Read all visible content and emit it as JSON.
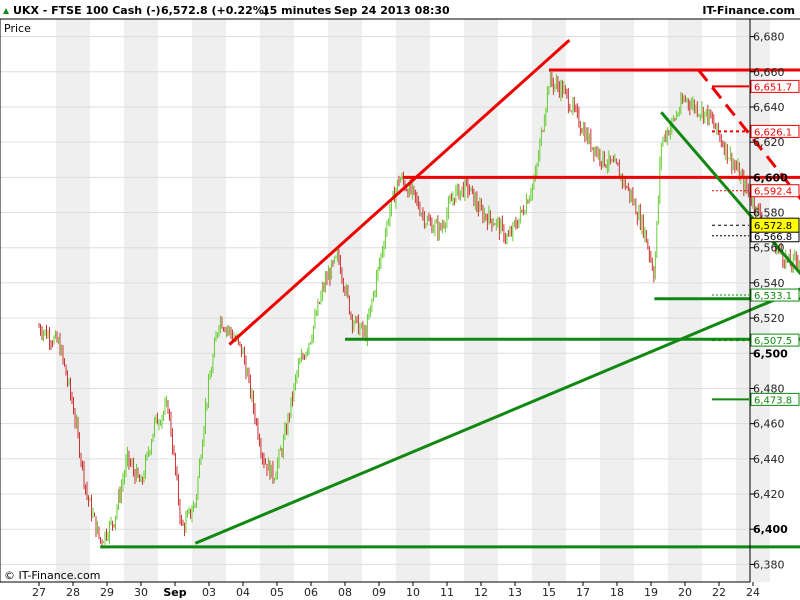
{
  "header": {
    "symbol": "UKX - FTSE 100 Cash (-)",
    "quote": "6,572.8 (+0.22%)",
    "interval": "15 minutes",
    "datetime": "Sep 24 2013 08:30",
    "brand": "IT-Finance.com"
  },
  "footer": {
    "copyright": "© IT-Finance.com"
  },
  "colors": {
    "up": "#66cc33",
    "down": "#cc3333",
    "resistance": "#ee0000",
    "support": "#118811",
    "alt_band": "#efefef",
    "bg": "#ffffff",
    "last_bg": "#ffff00"
  },
  "chart_data": {
    "type": "candlestick",
    "ylabel": "Price",
    "ylim": [
      6370,
      6690
    ],
    "y_ticks": [
      "6,380",
      "6,400",
      "6,420",
      "6,440",
      "6,460",
      "6,480",
      "6,500",
      "6,520",
      "6,540",
      "6,560",
      "6,580",
      "6,600",
      "6,620",
      "6,640",
      "6,660",
      "6,680"
    ],
    "y_tick_values": [
      6380,
      6400,
      6420,
      6440,
      6460,
      6480,
      6500,
      6520,
      6540,
      6560,
      6580,
      6600,
      6620,
      6640,
      6660,
      6680
    ],
    "y_bold_ticks": [
      6400,
      6500,
      6600
    ],
    "x_ticks": [
      "27",
      "28",
      "29",
      "30",
      "Sep",
      "03",
      "04",
      "05",
      "06",
      "08",
      "09",
      "10",
      "11",
      "12",
      "13",
      "15",
      "17",
      "18",
      "19",
      "20",
      "22",
      "24"
    ],
    "x_bold_ticks": [
      "Sep"
    ],
    "last_price": "6,572.8",
    "price_path": [
      [
        0,
        6515
      ],
      [
        0.6,
        6505
      ],
      [
        1.0,
        6470
      ],
      [
        1.4,
        6420
      ],
      [
        1.8,
        6393
      ],
      [
        2.2,
        6405
      ],
      [
        2.6,
        6440
      ],
      [
        3.0,
        6425
      ],
      [
        3.4,
        6460
      ],
      [
        3.8,
        6470
      ],
      [
        4.2,
        6400
      ],
      [
        4.6,
        6415
      ],
      [
        4.9,
        6470
      ],
      [
        5.3,
        6520
      ],
      [
        5.7,
        6510
      ],
      [
        6.0,
        6500
      ],
      [
        6.3,
        6470
      ],
      [
        6.6,
        6440
      ],
      [
        6.9,
        6430
      ],
      [
        7.2,
        6450
      ],
      [
        7.6,
        6490
      ],
      [
        8.0,
        6510
      ],
      [
        8.4,
        6540
      ],
      [
        8.8,
        6555
      ],
      [
        9.2,
        6520
      ],
      [
        9.6,
        6510
      ],
      [
        10.0,
        6550
      ],
      [
        10.3,
        6580
      ],
      [
        10.6,
        6600
      ],
      [
        11.0,
        6590
      ],
      [
        11.4,
        6575
      ],
      [
        11.8,
        6570
      ],
      [
        12.2,
        6590
      ],
      [
        12.6,
        6595
      ],
      [
        13.0,
        6580
      ],
      [
        13.4,
        6575
      ],
      [
        13.8,
        6565
      ],
      [
        14.2,
        6580
      ],
      [
        14.6,
        6600
      ],
      [
        15.0,
        6655
      ],
      [
        15.4,
        6650
      ],
      [
        15.8,
        6635
      ],
      [
        16.2,
        6620
      ],
      [
        16.6,
        6610
      ],
      [
        17.0,
        6605
      ],
      [
        17.4,
        6590
      ],
      [
        17.8,
        6570
      ],
      [
        18.1,
        6545
      ],
      [
        18.3,
        6620
      ],
      [
        18.6,
        6630
      ],
      [
        19.0,
        6645
      ],
      [
        19.3,
        6640
      ],
      [
        19.7,
        6635
      ],
      [
        20.1,
        6620
      ],
      [
        20.5,
        6605
      ],
      [
        20.9,
        6590
      ],
      [
        21.3,
        6575
      ],
      [
        21.7,
        6560
      ],
      [
        22.1,
        6550
      ],
      [
        22.4,
        6555
      ],
      [
        22.8,
        6562
      ],
      [
        23.2,
        6572.8
      ]
    ]
  },
  "level_labels": [
    {
      "text": "6,651.7",
      "value": 6651.7,
      "color": "#ee0000",
      "style": "solid"
    },
    {
      "text": "6,626.1",
      "value": 6626.1,
      "color": "#ee0000",
      "style": "dotted"
    },
    {
      "text": "6,592.4",
      "value": 6592.4,
      "color": "#ee0000",
      "style": "fine"
    },
    {
      "text": "6,566.8",
      "value": 6566.8,
      "color": "#000000",
      "style": "fine"
    },
    {
      "text": "6,533.1",
      "value": 6533.1,
      "color": "#118811",
      "style": "fine"
    },
    {
      "text": "6,507.5",
      "value": 6507.5,
      "color": "#118811",
      "style": "dotted"
    },
    {
      "text": "6,473.8",
      "value": 6473.8,
      "color": "#118811",
      "style": "solid"
    }
  ],
  "trend_lines": [
    {
      "name": "resistance-6660",
      "color": "resistance",
      "dash": false,
      "x1": 15.0,
      "y1": 6661,
      "x2": 23.8,
      "y2": 6661
    },
    {
      "name": "resistance-6600",
      "color": "resistance",
      "dash": false,
      "x1": 10.7,
      "y1": 6600,
      "x2": 23.8,
      "y2": 6600
    },
    {
      "name": "rising-resistance",
      "color": "resistance",
      "dash": false,
      "x1": 5.6,
      "y1": 6505,
      "x2": 15.6,
      "y2": 6678
    },
    {
      "name": "falling-resistance-dashed",
      "color": "resistance",
      "dash": true,
      "x1": 19.4,
      "y1": 6661,
      "x2": 23.5,
      "y2": 6561
    },
    {
      "name": "falling-support",
      "color": "support",
      "dash": false,
      "x1": 18.3,
      "y1": 6637,
      "x2": 22.5,
      "y2": 6543
    },
    {
      "name": "rising-support",
      "color": "support",
      "dash": false,
      "x1": 4.6,
      "y1": 6392,
      "x2": 23.8,
      "y2": 6548
    },
    {
      "name": "support-6531",
      "color": "support",
      "dash": false,
      "x1": 18.1,
      "y1": 6531,
      "x2": 23.8,
      "y2": 6531
    },
    {
      "name": "support-6508",
      "color": "support",
      "dash": false,
      "x1": 9.0,
      "y1": 6508,
      "x2": 23.8,
      "y2": 6508
    },
    {
      "name": "support-6390",
      "color": "support",
      "dash": false,
      "x1": 1.8,
      "y1": 6390,
      "x2": 23.8,
      "y2": 6390
    }
  ]
}
